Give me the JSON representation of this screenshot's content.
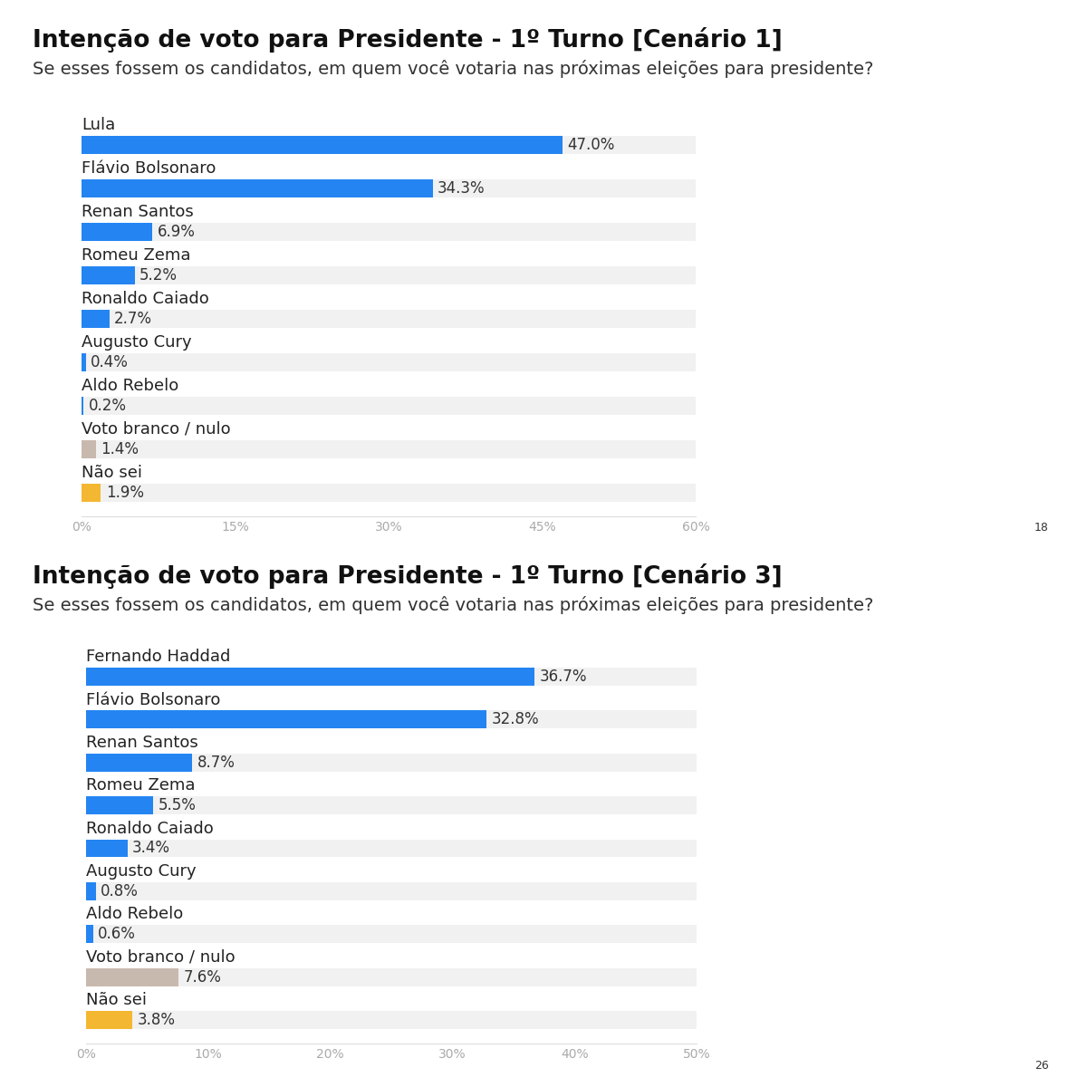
{
  "chart_data": [
    {
      "type": "bar",
      "orientation": "horizontal",
      "title": "Intenção de voto para Presidente - 1º Turno [Cenário 1]",
      "subtitle": "Se esses fossem os candidatos, em quem você votaria nas próximas eleições para presidente?",
      "categories": [
        "Lula",
        "Flávio Bolsonaro",
        "Renan Santos",
        "Romeu Zema",
        "Ronaldo Caiado",
        "Augusto Cury",
        "Aldo Rebelo",
        "Voto branco / nulo",
        "Não sei"
      ],
      "values": [
        47.0,
        34.3,
        6.9,
        5.2,
        2.7,
        0.4,
        0.2,
        1.4,
        1.9
      ],
      "value_labels": [
        "47.0%",
        "34.3%",
        "6.9%",
        "5.2%",
        "2.7%",
        "0.4%",
        "0.2%",
        "1.4%",
        "1.9%"
      ],
      "colors": [
        "#2485f2",
        "#2485f2",
        "#2485f2",
        "#2485f2",
        "#2485f2",
        "#2485f2",
        "#2485f2",
        "#c8b9ae",
        "#f4b731"
      ],
      "data_labels": true,
      "xlim": [
        0,
        60
      ],
      "xticks": [
        {
          "value": 0,
          "label": "0%"
        },
        {
          "value": 15,
          "label": "15%"
        },
        {
          "value": 30,
          "label": "30%"
        },
        {
          "value": 45,
          "label": "45%"
        },
        {
          "value": 60,
          "label": "60%"
        }
      ],
      "annotations": [
        "18"
      ]
    },
    {
      "type": "bar",
      "orientation": "horizontal",
      "title": "Intenção de voto para Presidente - 1º Turno [Cenário 3]",
      "subtitle": "Se esses fossem os candidatos, em quem você votaria nas próximas eleições para presidente?",
      "categories": [
        "Fernando Haddad",
        "Flávio Bolsonaro",
        "Renan Santos",
        "Romeu Zema",
        "Ronaldo Caiado",
        "Augusto Cury",
        "Aldo Rebelo",
        "Voto branco / nulo",
        "Não sei"
      ],
      "values": [
        36.7,
        32.8,
        8.7,
        5.5,
        3.4,
        0.8,
        0.6,
        7.6,
        3.8
      ],
      "value_labels": [
        "36.7%",
        "32.8%",
        "8.7%",
        "5.5%",
        "3.4%",
        "0.8%",
        "0.6%",
        "7.6%",
        "3.8%"
      ],
      "colors": [
        "#2485f2",
        "#2485f2",
        "#2485f2",
        "#2485f2",
        "#2485f2",
        "#2485f2",
        "#2485f2",
        "#c8b9ae",
        "#f4b731"
      ],
      "data_labels": true,
      "xlim": [
        0,
        50
      ],
      "xticks": [
        {
          "value": 0,
          "label": "0%"
        },
        {
          "value": 10,
          "label": "10%"
        },
        {
          "value": 20,
          "label": "20%"
        },
        {
          "value": 30,
          "label": "30%"
        },
        {
          "value": 40,
          "label": "40%"
        },
        {
          "value": 50,
          "label": "50%"
        }
      ],
      "annotations": [
        "26"
      ]
    }
  ]
}
